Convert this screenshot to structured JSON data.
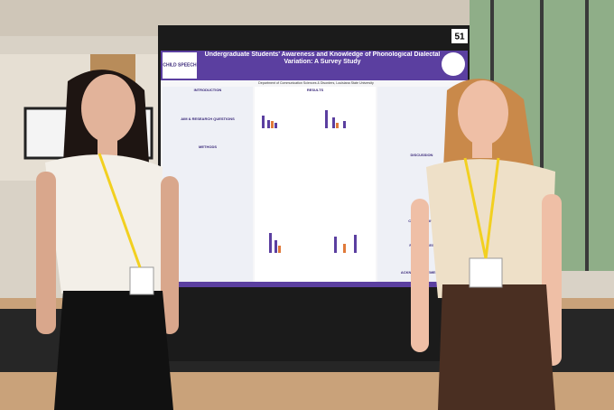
{
  "poster": {
    "number": "51",
    "logo": "CHILD SPEECH",
    "title": "Undergraduate Students' Awareness and Knowledge of Phonological Dialectal Variation: A Survey Study",
    "affiliation": "Department of Communication Sciences & Disorders, Louisiana State University",
    "sections": [
      "INTRODUCTION",
      "AIM & RESEARCH QUESTIONS",
      "METHODS",
      "RESULTS",
      "DISCUSSION",
      "CONCLUSIONS",
      "REFERENCES",
      "ACKNOWLEDGEMENTS"
    ]
  }
}
